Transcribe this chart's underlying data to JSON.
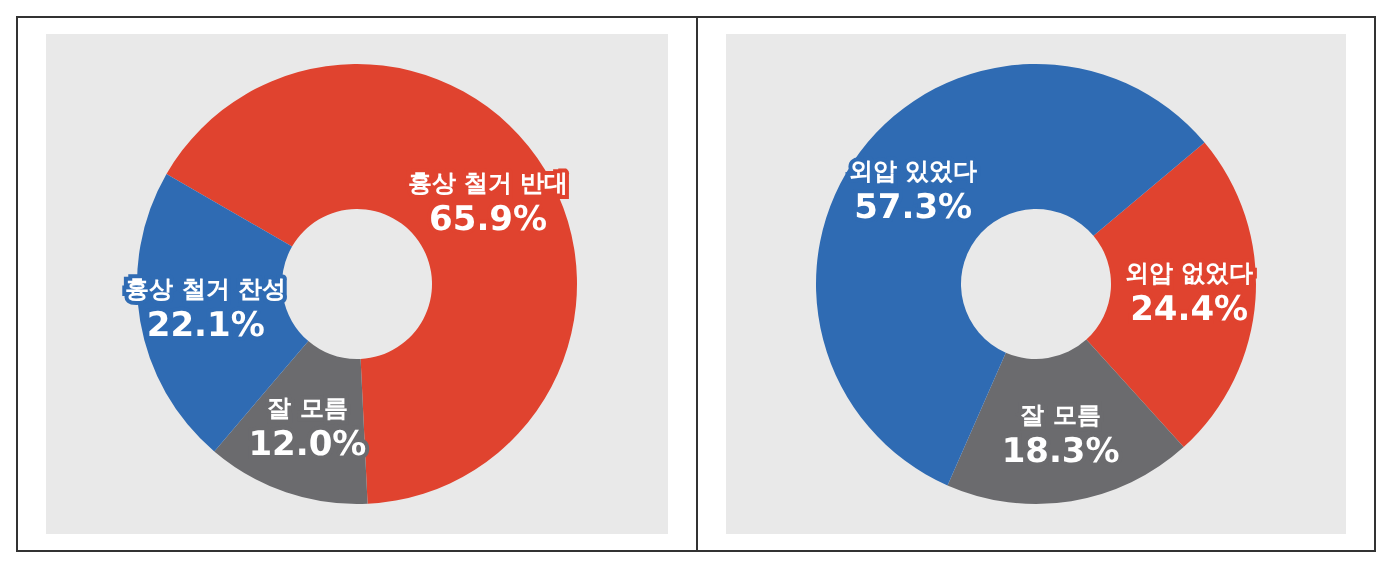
{
  "chart_data": [
    {
      "type": "donut",
      "categories": [
        "흉상 철거 반대",
        "잘 모름",
        "흉상 철거 찬성"
      ],
      "values": [
        65.9,
        12.0,
        22.1
      ],
      "colors": [
        "#e0432f",
        "#6b6b6e",
        "#2f6bb3"
      ],
      "value_labels": [
        "65.9%",
        "12.0%",
        "22.1%"
      ],
      "legend": false
    },
    {
      "type": "donut",
      "categories": [
        "외압 없었다",
        "잘 모름",
        "외압 있었다"
      ],
      "values": [
        24.4,
        18.3,
        57.3
      ],
      "colors": [
        "#e0432f",
        "#6b6b6e",
        "#2f6bb3"
      ],
      "value_labels": [
        "24.4%",
        "18.3%",
        "57.3%"
      ],
      "legend": false
    }
  ]
}
